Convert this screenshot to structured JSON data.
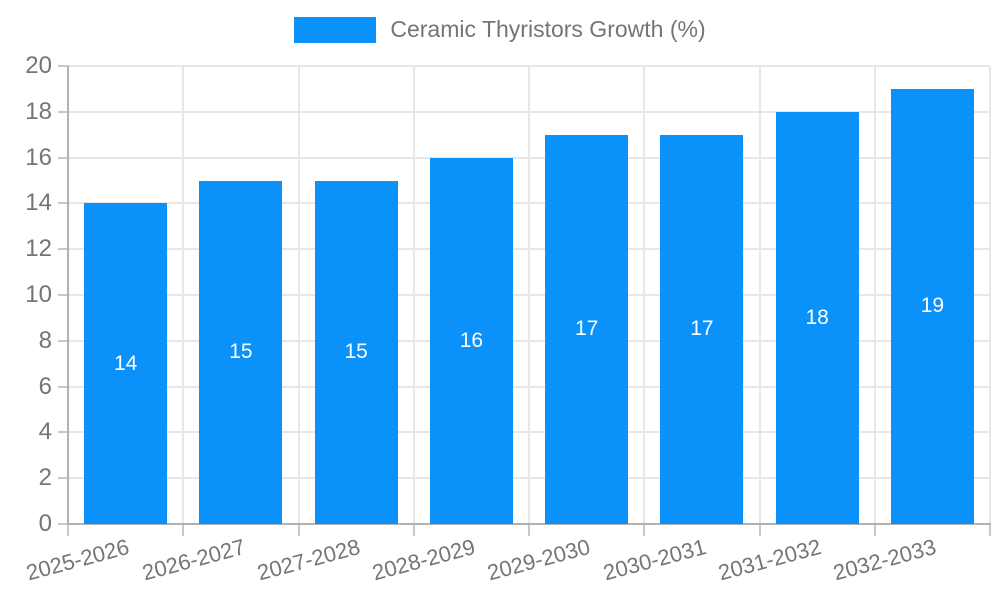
{
  "legend": {
    "label": "Ceramic Thyristors Growth (%)"
  },
  "colors": {
    "bar": "#0a91fa",
    "text": "#757575",
    "grid": "#e7e7e7",
    "axis": "#b1b1b1",
    "tick": "#c9c9c9",
    "value_label": "#ffffff"
  },
  "chart_data": {
    "type": "bar",
    "title": "",
    "categories": [
      "2025-2026",
      "2026-2027",
      "2027-2028",
      "2028-2029",
      "2029-2030",
      "2030-2031",
      "2031-2032",
      "2032-2033"
    ],
    "series": [
      {
        "name": "Ceramic Thyristors Growth (%)",
        "values": [
          14,
          15,
          15,
          16,
          17,
          17,
          18,
          19
        ]
      }
    ],
    "xlabel": "",
    "ylabel": "",
    "ylim": [
      0,
      20
    ],
    "ytick_step": 2,
    "ytick_labels": [
      "0",
      "2",
      "4",
      "6",
      "8",
      "10",
      "12",
      "14",
      "16",
      "18",
      "20"
    ],
    "grid": true,
    "legend_position": "top-center",
    "value_labels": "inside-center",
    "xtick_rotation_deg": -15
  }
}
